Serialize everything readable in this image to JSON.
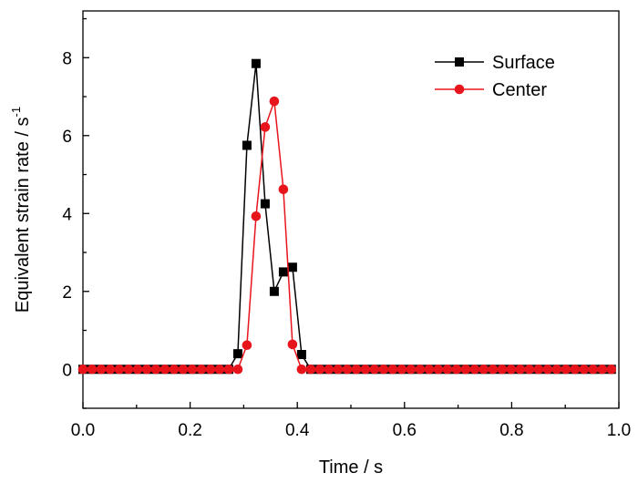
{
  "chart_data": {
    "type": "line",
    "xlabel": "Time / s",
    "ylabel_main": "Equivalent strain rate / s",
    "ylabel_sup": "-1",
    "xlim": [
      0.0,
      1.0
    ],
    "ylim": [
      -1.0,
      9.2
    ],
    "xticks": [
      0.0,
      0.2,
      0.4,
      0.6,
      0.8,
      1.0
    ],
    "xtick_labels": [
      "0.0",
      "0.2",
      "0.4",
      "0.6",
      "0.8",
      "1.0"
    ],
    "yticks": [
      0,
      2,
      4,
      6,
      8
    ],
    "ytick_labels": [
      "0",
      "2",
      "4",
      "6",
      "8"
    ],
    "grid": false,
    "legend_position": "top-right",
    "series": [
      {
        "name": "Surface",
        "color": "#000000",
        "marker": "square",
        "x": [
          0.0,
          0.017,
          0.034,
          0.051,
          0.068,
          0.085,
          0.102,
          0.119,
          0.136,
          0.153,
          0.17,
          0.187,
          0.204,
          0.221,
          0.238,
          0.255,
          0.272,
          0.289,
          0.306,
          0.323,
          0.34,
          0.357,
          0.374,
          0.391,
          0.408,
          0.425,
          0.442,
          0.459,
          0.476,
          0.493,
          0.51,
          0.527,
          0.544,
          0.561,
          0.578,
          0.595,
          0.612,
          0.629,
          0.646,
          0.663,
          0.68,
          0.697,
          0.714,
          0.731,
          0.748,
          0.765,
          0.782,
          0.799,
          0.816,
          0.833,
          0.85,
          0.867,
          0.884,
          0.901,
          0.918,
          0.935,
          0.952,
          0.969,
          0.986
        ],
        "y": [
          0,
          0,
          0,
          0,
          0,
          0,
          0,
          0,
          0,
          0,
          0,
          0,
          0,
          0,
          0,
          0,
          0,
          0.4,
          5.75,
          7.85,
          4.25,
          2.0,
          2.5,
          2.62,
          0.38,
          0,
          0,
          0,
          0,
          0,
          0,
          0,
          0,
          0,
          0,
          0,
          0,
          0,
          0,
          0,
          0,
          0,
          0,
          0,
          0,
          0,
          0,
          0,
          0,
          0,
          0,
          0,
          0,
          0,
          0,
          0,
          0,
          0,
          0
        ]
      },
      {
        "name": "Center",
        "color": "#e8141c",
        "marker": "circle",
        "x": [
          0.0,
          0.017,
          0.034,
          0.051,
          0.068,
          0.085,
          0.102,
          0.119,
          0.136,
          0.153,
          0.17,
          0.187,
          0.204,
          0.221,
          0.238,
          0.255,
          0.272,
          0.289,
          0.306,
          0.323,
          0.34,
          0.357,
          0.374,
          0.391,
          0.408,
          0.425,
          0.442,
          0.459,
          0.476,
          0.493,
          0.51,
          0.527,
          0.544,
          0.561,
          0.578,
          0.595,
          0.612,
          0.629,
          0.646,
          0.663,
          0.68,
          0.697,
          0.714,
          0.731,
          0.748,
          0.765,
          0.782,
          0.799,
          0.816,
          0.833,
          0.85,
          0.867,
          0.884,
          0.901,
          0.918,
          0.935,
          0.952,
          0.969,
          0.986
        ],
        "y": [
          0,
          0,
          0,
          0,
          0,
          0,
          0,
          0,
          0,
          0,
          0,
          0,
          0,
          0,
          0,
          0,
          0,
          0,
          0.62,
          3.93,
          6.22,
          6.88,
          4.62,
          0.64,
          0,
          0,
          0,
          0,
          0,
          0,
          0,
          0,
          0,
          0,
          0,
          0,
          0,
          0,
          0,
          0,
          0,
          0,
          0,
          0,
          0,
          0,
          0,
          0,
          0,
          0,
          0,
          0,
          0,
          0,
          0,
          0,
          0,
          0,
          0
        ]
      }
    ]
  }
}
